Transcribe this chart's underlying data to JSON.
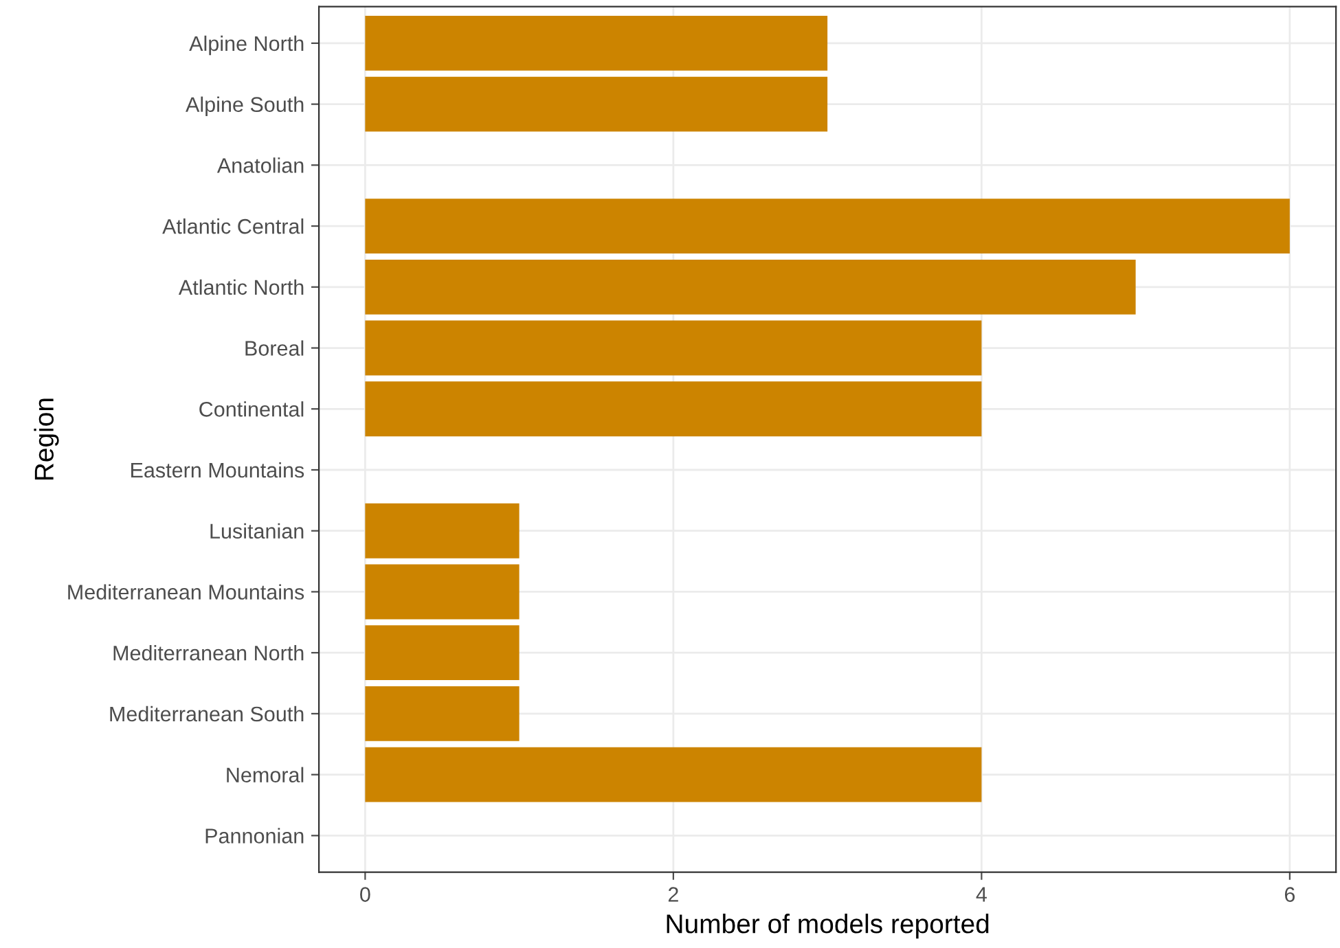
{
  "chart_data": {
    "type": "bar",
    "orientation": "horizontal",
    "xlabel": "Number of models reported",
    "ylabel": "Region",
    "categories": [
      "Alpine North",
      "Alpine South",
      "Anatolian",
      "Atlantic Central",
      "Atlantic North",
      "Boreal",
      "Continental",
      "Eastern Mountains",
      "Lusitanian",
      "Mediterranean Mountains",
      "Mediterranean North",
      "Mediterranean South",
      "Nemoral",
      "Pannonian"
    ],
    "values": [
      3,
      3,
      0,
      6,
      5,
      4,
      4,
      0,
      1,
      1,
      1,
      1,
      4,
      0
    ],
    "color": "#cc8400",
    "xlim": [
      -0.3,
      6.3
    ],
    "xticks": [
      0,
      2,
      4,
      6
    ],
    "grid": true,
    "legend": false
  }
}
